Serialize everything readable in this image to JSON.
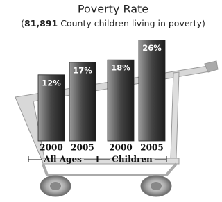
{
  "chart_data": {
    "type": "bar",
    "title": "Poverty Rate",
    "subtitle": [
      "(",
      "81,891",
      " County children living in poverty)"
    ],
    "categories": [
      "2000",
      "2005",
      "2000",
      "2005"
    ],
    "groups": [
      {
        "name": "All Ages",
        "size": 2
      },
      {
        "name": "Children",
        "size": 2
      }
    ],
    "values": [
      12,
      17,
      18,
      26
    ],
    "value_labels": [
      "12%",
      "17%",
      "18%",
      "26%"
    ]
  }
}
